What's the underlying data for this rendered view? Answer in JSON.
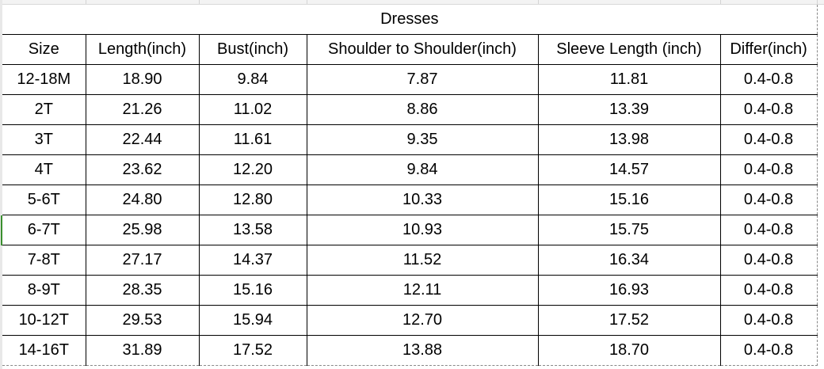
{
  "title": "Dresses",
  "headers": [
    "Size",
    "Length(inch)",
    "Bust(inch)",
    "Shoulder to Shoulder(inch)",
    "Sleeve Length (inch)",
    "Differ(inch)"
  ],
  "rows": [
    [
      "12-18M",
      "18.90",
      "9.84",
      "7.87",
      "11.81",
      "0.4-0.8"
    ],
    [
      "2T",
      "21.26",
      "11.02",
      "8.86",
      "13.39",
      "0.4-0.8"
    ],
    [
      "3T",
      "22.44",
      "11.61",
      "9.35",
      "13.98",
      "0.4-0.8"
    ],
    [
      "4T",
      "23.62",
      "12.20",
      "9.84",
      "14.57",
      "0.4-0.8"
    ],
    [
      "5-6T",
      "24.80",
      "12.80",
      "10.33",
      "15.16",
      "0.4-0.8"
    ],
    [
      "6-7T",
      "25.98",
      "13.58",
      "10.93",
      "15.75",
      "0.4-0.8"
    ],
    [
      "7-8T",
      "27.17",
      "14.37",
      "11.52",
      "16.34",
      "0.4-0.8"
    ],
    [
      "8-9T",
      "28.35",
      "15.16",
      "12.11",
      "16.93",
      "0.4-0.8"
    ],
    [
      "10-12T",
      "29.53",
      "15.94",
      "12.70",
      "17.52",
      "0.4-0.8"
    ],
    [
      "14-16T",
      "31.89",
      "17.52",
      "13.88",
      "18.70",
      "0.4-0.8"
    ]
  ],
  "colors": {
    "grid": "#000000",
    "selection_marker": "#3a8f2f"
  }
}
